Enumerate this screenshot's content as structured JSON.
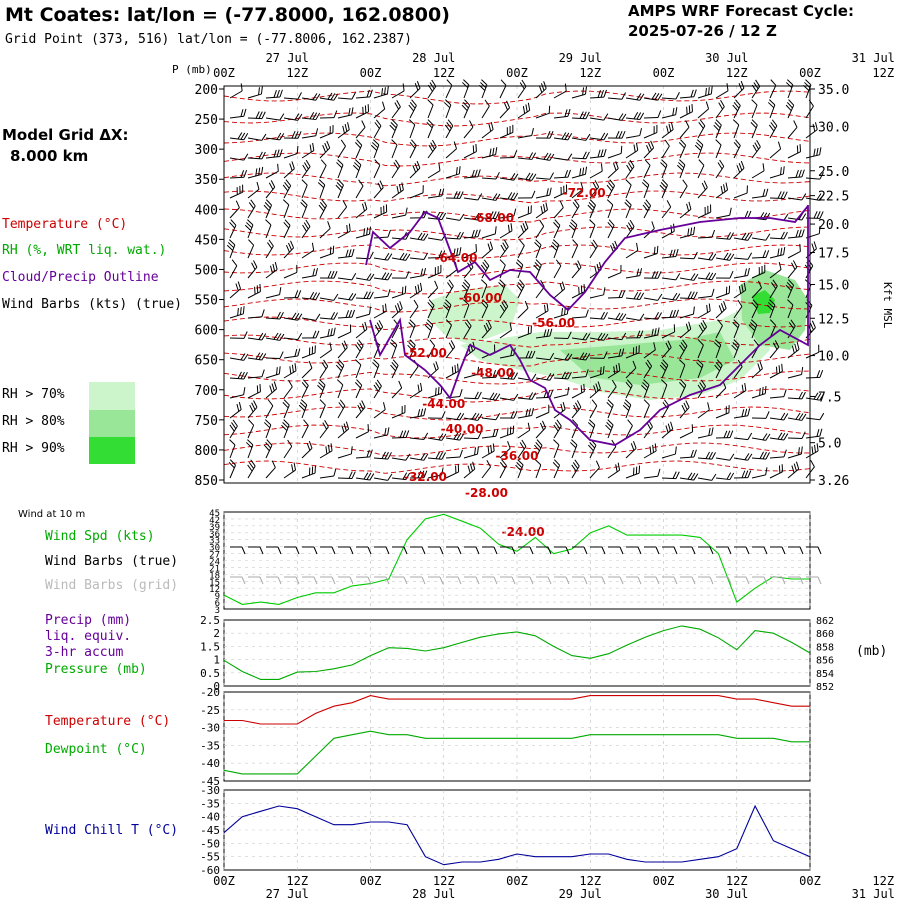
{
  "header": {
    "title": "Mt Coates:  lat/lon = (-77.8000, 162.0800)",
    "subtitle": "Grid Point (373, 516) lat/lon = (-77.8006, 162.2387)",
    "cycle_label": "AMPS WRF Forecast Cycle:",
    "cycle_value": "2025-07-26 / 12  Z"
  },
  "model_grid": {
    "label": "Model Grid ΔX:",
    "value": "8.000 km"
  },
  "legend_top": [
    {
      "text": "Temperature (°C)",
      "color": "#cc0000"
    },
    {
      "text": "RH (%, WRT liq. wat.)",
      "color": "#00aa00"
    },
    {
      "text": "Cloud/Precip Outline",
      "color": "#660099"
    },
    {
      "text": "Wind Barbs (kts) (true)",
      "color": "#000000"
    }
  ],
  "rh_legend": [
    {
      "text": "RH > 70%",
      "color": "#ccf5cc"
    },
    {
      "text": "RH > 80%",
      "color": "#99e699"
    },
    {
      "text": "RH > 90%",
      "color": "#33dd33"
    }
  ],
  "wind10m": {
    "header": "Wind at 10 m",
    "labels": [
      {
        "text": "Wind Spd (kts)",
        "color": "#00aa00"
      },
      {
        "text": "Wind Barbs (true)",
        "color": "#000000"
      },
      {
        "text": "Wind Barbs (grid)",
        "color": "#bbbbbb"
      }
    ]
  },
  "precip_labels": [
    {
      "text": "Precip (mm)",
      "color": "#660099"
    },
    {
      "text": "liq. equiv.",
      "color": "#660099"
    },
    {
      "text": "3-hr accum",
      "color": "#660099"
    },
    {
      "text": "Pressure (mb)",
      "color": "#00aa00"
    }
  ],
  "pressure_unit": "(mb)",
  "temp_labels": [
    {
      "text": "Temperature (°C)",
      "color": "#cc0000"
    },
    {
      "text": "Dewpoint (°C)",
      "color": "#00aa00"
    }
  ],
  "windchill_label": {
    "text": "Wind Chill T (°C)",
    "color": "#000099"
  },
  "colors": {
    "temperature": "#cc0000",
    "rh": "#00aa00",
    "cloud": "#660099",
    "wind_speed": "#00cc00",
    "wind_chill": "#000099",
    "grid": "#aaaaaa"
  },
  "chart_data": [
    {
      "type": "heatmap",
      "name": "cross-section",
      "p_label": "P (mb)",
      "kft_label": "Kft MSL",
      "pressure_levels": [
        200,
        250,
        300,
        350,
        400,
        450,
        500,
        550,
        600,
        650,
        700,
        750,
        800,
        850
      ],
      "kft_ticks": [
        {
          "label": "35.0",
          "p": 200
        },
        {
          "label": "30.0",
          "p": 242
        },
        {
          "label": "25.0",
          "p": 292
        },
        {
          "label": "22.5",
          "p": 320
        },
        {
          "label": "20.0",
          "p": 352
        },
        {
          "label": "17.5",
          "p": 384
        },
        {
          "label": "15.0",
          "p": 420
        },
        {
          "label": "12.5",
          "p": 458
        },
        {
          "label": "10.0",
          "p": 500
        },
        {
          "label": "7.5",
          "p": 546
        },
        {
          "label": "5.0",
          "p": 598
        },
        {
          "label": "3.26",
          "p": 640
        }
      ],
      "time_ticks": [
        "00Z",
        "12Z",
        "00Z",
        "12Z",
        "00Z",
        "12Z",
        "00Z",
        "12Z",
        "00Z",
        "12Z"
      ],
      "date_ticks": [
        "27 Jul",
        "28 Jul",
        "29 Jul",
        "30 Jul",
        "31 Jul"
      ],
      "temperature_contours": [
        {
          "label": "-72.00",
          "t": 59,
          "p": 197
        },
        {
          "label": "-68.00",
          "t": 44,
          "p": 222
        },
        {
          "label": "-64.00",
          "t": 38,
          "p": 262
        },
        {
          "label": "-60.00",
          "t": 42,
          "p": 302
        },
        {
          "label": "-56.00",
          "t": 54,
          "p": 327
        },
        {
          "label": "-52.00",
          "t": 33,
          "p": 357
        },
        {
          "label": "-48.00",
          "t": 44,
          "p": 377
        },
        {
          "label": "-44.00",
          "t": 36,
          "p": 408
        },
        {
          "label": "-40.00",
          "t": 39,
          "p": 433
        },
        {
          "label": "-36.00",
          "t": 48,
          "p": 460
        },
        {
          "label": "-32.00",
          "t": 33,
          "p": 481
        },
        {
          "label": "-28.00",
          "t": 43,
          "p": 497
        },
        {
          "label": "-24.00",
          "t": 49,
          "p": 536
        }
      ]
    },
    {
      "type": "line",
      "name": "wind-speed-10m",
      "ylim": [
        3,
        45
      ],
      "yticks": [
        3,
        6,
        9,
        12,
        15,
        18,
        21,
        24,
        27,
        30,
        33,
        36,
        39,
        42,
        45
      ],
      "series": [
        {
          "name": "Wind Spd (kts)",
          "x": [
            0,
            3,
            6,
            9,
            12,
            15,
            18,
            21,
            24,
            27,
            30,
            33,
            36,
            39,
            42,
            45,
            48,
            51,
            54,
            57,
            60,
            63,
            66,
            69,
            72,
            75,
            78,
            81,
            84,
            87,
            90,
            93,
            96
          ],
          "values": [
            9,
            5,
            6,
            5,
            8,
            10,
            10,
            13,
            14,
            16,
            33,
            42,
            44,
            41,
            38,
            31,
            28,
            34,
            27,
            29,
            36,
            39,
            35,
            35,
            35,
            35,
            34,
            27,
            6,
            12,
            17,
            16,
            16
          ]
        }
      ]
    },
    {
      "type": "line",
      "name": "precip-pressure",
      "ylim": [
        0,
        2.5
      ],
      "yticks": [
        0,
        0.5,
        1.0,
        1.5,
        2.0,
        2.5
      ],
      "y2lim": [
        852,
        862
      ],
      "y2ticks": [
        852,
        854,
        856,
        858,
        860,
        862
      ],
      "series": [
        {
          "name": "Pressure (mb)",
          "x": [
            0,
            3,
            6,
            9,
            12,
            15,
            18,
            21,
            24,
            27,
            30,
            33,
            36,
            39,
            42,
            45,
            48,
            51,
            54,
            57,
            60,
            63,
            66,
            69,
            72,
            75,
            78,
            81,
            84,
            87,
            90,
            93,
            96
          ],
          "values": [
            855.9,
            854.2,
            853.0,
            853.0,
            854.1,
            854.2,
            854.6,
            855.2,
            856.6,
            857.8,
            857.7,
            857.3,
            857.8,
            858.6,
            859.4,
            859.9,
            860.2,
            859.6,
            858.0,
            856.6,
            856.2,
            856.9,
            858.2,
            859.4,
            860.4,
            861.1,
            860.6,
            859.3,
            857.5,
            860.4,
            860.0,
            858.6,
            857.0
          ]
        }
      ]
    },
    {
      "type": "line",
      "name": "temperature-dewpoint",
      "ylim": [
        -45,
        -20
      ],
      "yticks": [
        -45,
        -40,
        -35,
        -30,
        -25,
        -20
      ],
      "series": [
        {
          "name": "Temperature (°C)",
          "x": [
            0,
            3,
            6,
            9,
            12,
            15,
            18,
            21,
            24,
            27,
            30,
            33,
            36,
            39,
            42,
            45,
            48,
            51,
            54,
            57,
            60,
            63,
            66,
            69,
            72,
            75,
            78,
            81,
            84,
            87,
            90,
            93,
            96
          ],
          "values": [
            -28,
            -28,
            -29,
            -29,
            -29,
            -26,
            -24,
            -23,
            -21,
            -22,
            -22,
            -22,
            -22,
            -22,
            -22,
            -22,
            -22,
            -22,
            -22,
            -22,
            -21,
            -21,
            -21,
            -21,
            -21,
            -21,
            -21,
            -21,
            -22,
            -22,
            -23,
            -24,
            -24
          ]
        },
        {
          "name": "Dewpoint (°C)",
          "x": [
            0,
            3,
            6,
            9,
            12,
            15,
            18,
            21,
            24,
            27,
            30,
            33,
            36,
            39,
            42,
            45,
            48,
            51,
            54,
            57,
            60,
            63,
            66,
            69,
            72,
            75,
            78,
            81,
            84,
            87,
            90,
            93,
            96
          ],
          "values": [
            -42,
            -43,
            -43,
            -43,
            -43,
            -38,
            -33,
            -32,
            -31,
            -32,
            -32,
            -33,
            -33,
            -33,
            -33,
            -33,
            -33,
            -33,
            -33,
            -33,
            -32,
            -32,
            -32,
            -32,
            -32,
            -32,
            -32,
            -32,
            -33,
            -33,
            -33,
            -34,
            -34
          ]
        }
      ]
    },
    {
      "type": "line",
      "name": "wind-chill",
      "ylim": [
        -60,
        -30
      ],
      "yticks": [
        -60,
        -55,
        -50,
        -45,
        -40,
        -35,
        -30
      ],
      "series": [
        {
          "name": "Wind Chill T (°C)",
          "x": [
            0,
            3,
            6,
            9,
            12,
            15,
            18,
            21,
            24,
            27,
            30,
            33,
            36,
            39,
            42,
            45,
            48,
            51,
            54,
            57,
            60,
            63,
            66,
            69,
            72,
            75,
            78,
            81,
            84,
            87,
            90,
            93,
            96
          ],
          "values": [
            -46,
            -40,
            -38,
            -36,
            -37,
            -40,
            -43,
            -43,
            -42,
            -42,
            -43,
            -55,
            -58,
            -57,
            -57,
            -56,
            -54,
            -55,
            -55,
            -55,
            -54,
            -54,
            -56,
            -57,
            -57,
            -57,
            -56,
            -55,
            -52,
            -36,
            -49,
            -52,
            -55
          ]
        }
      ]
    }
  ]
}
